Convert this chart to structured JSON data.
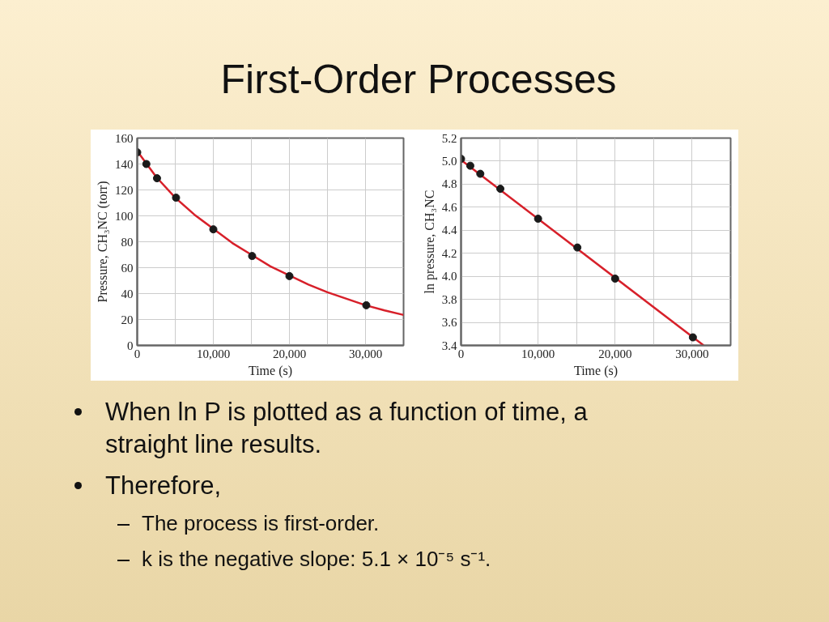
{
  "chart_data": [
    {
      "type": "scatter",
      "title": "First-Order Processes",
      "xlabel": "Time (s)",
      "ylabel": "Pressure, CH₃NC (torr)",
      "xlim": [
        0,
        35000
      ],
      "xticks": [
        0,
        {
          "value": 5000,
          "label": null
        },
        {
          "value": 10000,
          "label": "10,000"
        },
        {
          "value": 15000,
          "label": null
        },
        {
          "value": 20000,
          "label": "20,000"
        },
        {
          "value": 25000,
          "label": null
        },
        {
          "value": 30000,
          "label": "30,000"
        }
      ],
      "ylim": [
        0,
        160
      ],
      "yticks": [
        0,
        20,
        40,
        60,
        80,
        100,
        120,
        140,
        160
      ],
      "grid": true,
      "marker": "circle",
      "series": [
        {
          "type": "line",
          "color": "#d7202a",
          "line_style": "solid",
          "marker": "none",
          "x": [
            0,
            2500,
            5000,
            7500,
            10000,
            12500,
            15000,
            17500,
            20000,
            22500,
            25000,
            27500,
            30000,
            32500,
            35000
          ],
          "values": [
            150,
            130,
            114,
            101,
            90,
            79,
            70,
            61,
            54,
            47,
            41,
            36,
            31,
            27,
            23.5
          ]
        },
        {
          "color": "#1a1a1a",
          "x": [
            0,
            1200,
            2600,
            5100,
            10000,
            15100,
            20000,
            30100
          ],
          "values": [
            149,
            140,
            129,
            114,
            89.6,
            69,
            53.5,
            31
          ]
        }
      ]
    },
    {
      "type": "scatter",
      "xlabel": "Time (s)",
      "ylabel": "ln pressure, CH₃NC",
      "xlim": [
        0,
        35000
      ],
      "xticks": [
        0,
        {
          "value": 5000,
          "label": null
        },
        {
          "value": 10000,
          "label": "10,000"
        },
        {
          "value": 15000,
          "label": null
        },
        {
          "value": 20000,
          "label": "20,000"
        },
        {
          "value": 25000,
          "label": null
        },
        {
          "value": 30000,
          "label": "30,000"
        }
      ],
      "ylim": [
        3.4,
        5.2
      ],
      "yticks": [
        {
          "value": 3.4,
          "label": "3.4"
        },
        {
          "value": 3.6,
          "label": "3.6"
        },
        {
          "value": 3.8,
          "label": "3.8"
        },
        {
          "value": 4.0,
          "label": "4.0"
        },
        {
          "value": 4.2,
          "label": "4.2"
        },
        {
          "value": 4.4,
          "label": "4.4"
        },
        {
          "value": 4.6,
          "label": "4.6"
        },
        {
          "value": 4.8,
          "label": "4.8"
        },
        {
          "value": 5.0,
          "label": "5.0"
        },
        {
          "value": 5.2,
          "label": "5.2"
        }
      ],
      "grid": true,
      "marker": "circle",
      "series": [
        {
          "type": "line",
          "color": "#d7202a",
          "line_style": "solid",
          "marker": "none",
          "x": [
            0,
            31500
          ],
          "values": [
            5.01,
            3.4
          ]
        },
        {
          "color": "#1a1a1a",
          "x": [
            0,
            1200,
            2500,
            5100,
            10000,
            15100,
            20000,
            30100
          ],
          "values": [
            5.02,
            4.96,
            4.89,
            4.76,
            4.5,
            4.25,
            3.98,
            3.47
          ]
        }
      ],
      "annotations": [
        "When ln P is plotted as a function of time, a straight line results.",
        "Therefore,",
        "The process is first-order.",
        "k is the negative slope:  5.1 × 10⁻⁵ s⁻¹."
      ]
    }
  ]
}
